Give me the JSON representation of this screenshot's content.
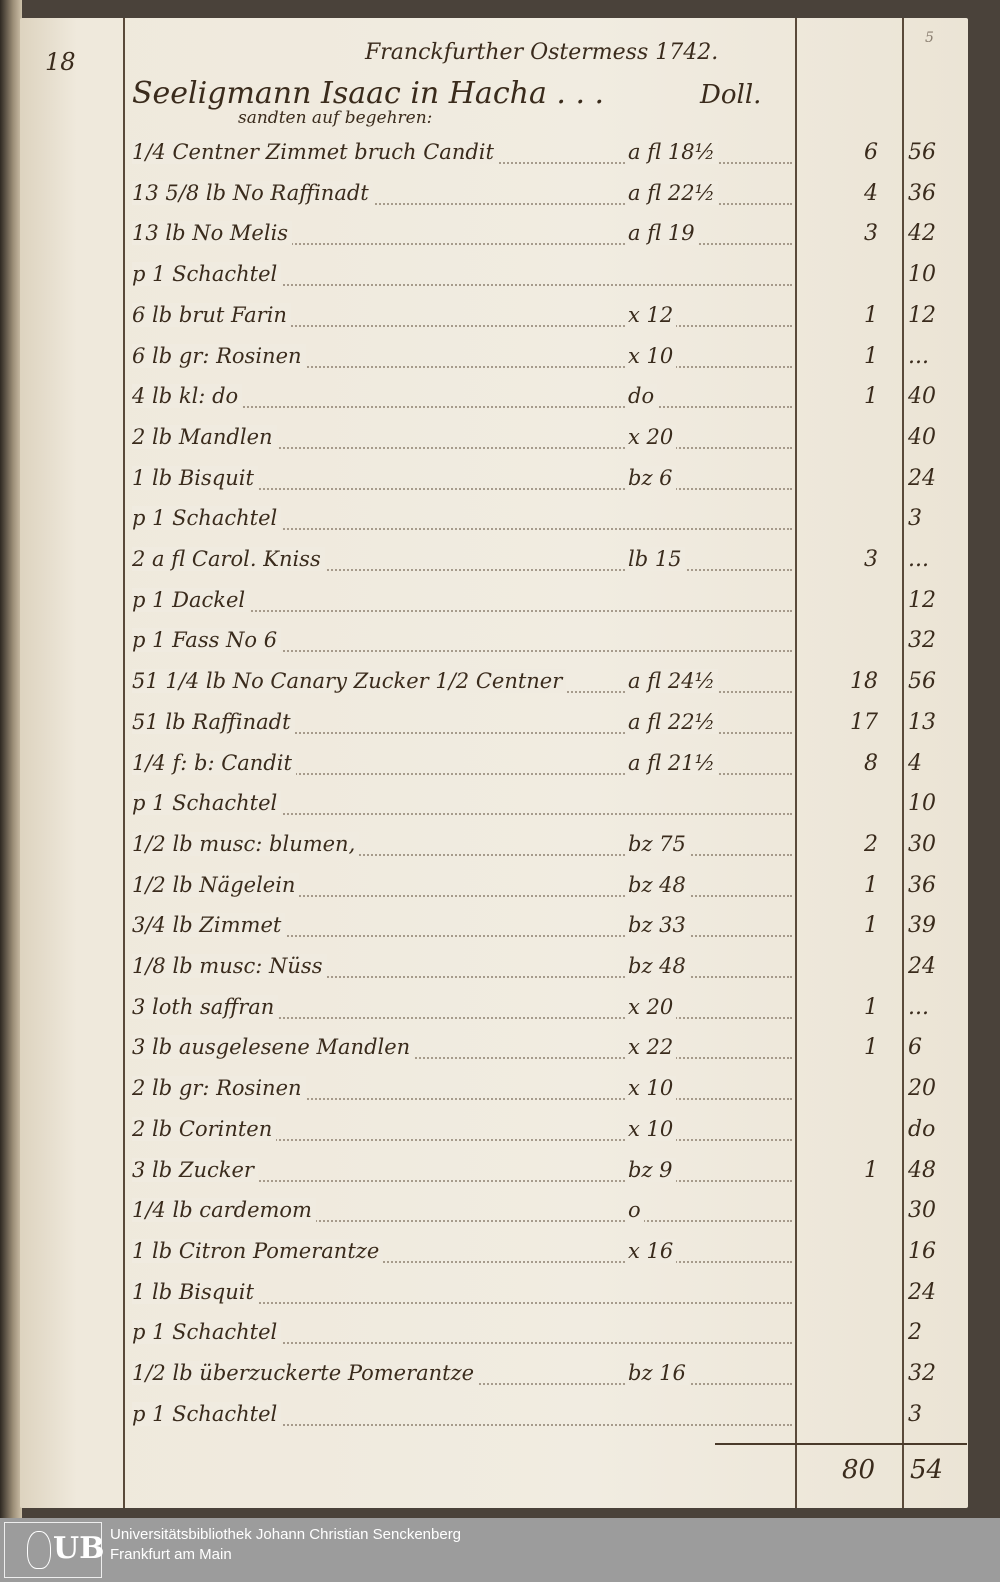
{
  "page": {
    "page_number": "18",
    "folio": "5",
    "header_line1": "Franckfurther Ostermess 1742.",
    "header_line2": "Seeligmann Isaac in Hacha . . .",
    "header_right": "Doll.",
    "header_line3": "sandten auf begehren:"
  },
  "entries": [
    {
      "item": "1/4 Centner Zimmet bruch Candit",
      "rate": "a fl 18½",
      "fl": "6",
      "kr": "56"
    },
    {
      "item": "13 5/8 lb No Raffinadt",
      "rate": "a fl 22½",
      "fl": "4",
      "kr": "36"
    },
    {
      "item": "13 lb No Melis",
      "rate": "a fl 19",
      "fl": "3",
      "kr": "42"
    },
    {
      "item": "p 1 Schachtel",
      "rate": "",
      "fl": "",
      "kr": "10"
    },
    {
      "item": "6 lb brut Farin",
      "rate": "x 12",
      "fl": "1",
      "kr": "12"
    },
    {
      "item": "6 lb gr: Rosinen",
      "rate": "x 10",
      "fl": "1",
      "kr": "..."
    },
    {
      "item": "4 lb kl: do",
      "rate": "do",
      "fl": "1",
      "kr": "40"
    },
    {
      "item": "2 lb Mandlen",
      "rate": "x 20",
      "fl": "",
      "kr": "40"
    },
    {
      "item": "1 lb Bisquit",
      "rate": "bz 6",
      "fl": "",
      "kr": "24"
    },
    {
      "item": "p 1 Schachtel",
      "rate": "",
      "fl": "",
      "kr": "3"
    },
    {
      "item": "2 a fl Carol. Kniss",
      "rate": "lb 15",
      "fl": "3",
      "kr": "..."
    },
    {
      "item": "p 1 Dackel",
      "rate": "",
      "fl": "",
      "kr": "12"
    },
    {
      "item": "p 1 Fass No 6",
      "rate": "",
      "fl": "",
      "kr": "32"
    },
    {
      "item": "51 1/4 lb No Canary Zucker 1/2 Centner",
      "rate": "a fl 24½",
      "fl": "18",
      "kr": "56"
    },
    {
      "item": "51 lb Raffinadt",
      "rate": "a fl 22½",
      "fl": "17",
      "kr": "13"
    },
    {
      "item": "1/4 f: b: Candit",
      "rate": "a fl 21½",
      "fl": "8",
      "kr": "4"
    },
    {
      "item": "p 1 Schachtel",
      "rate": "",
      "fl": "",
      "kr": "10"
    },
    {
      "item": "1/2 lb musc: blumen,",
      "rate": "bz 75",
      "fl": "2",
      "kr": "30"
    },
    {
      "item": "1/2 lb Nägelein",
      "rate": "bz 48",
      "fl": "1",
      "kr": "36"
    },
    {
      "item": "3/4 lb Zimmet",
      "rate": "bz 33",
      "fl": "1",
      "kr": "39"
    },
    {
      "item": "1/8 lb musc: Nüss",
      "rate": "bz 48",
      "fl": "",
      "kr": "24"
    },
    {
      "item": "3 loth saffran",
      "rate": "x 20",
      "fl": "1",
      "kr": "..."
    },
    {
      "item": "3 lb ausgelesene Mandlen",
      "rate": "x 22",
      "fl": "1",
      "kr": "6"
    },
    {
      "item": "2 lb gr: Rosinen",
      "rate": "x 10",
      "fl": "",
      "kr": "20"
    },
    {
      "item": "2 lb Corinten",
      "rate": "x 10",
      "fl": "",
      "kr": "do"
    },
    {
      "item": "3 lb Zucker",
      "rate": "bz 9",
      "fl": "1",
      "kr": "48"
    },
    {
      "item": "1/4 lb cardemom",
      "rate": "o",
      "fl": "",
      "kr": "30"
    },
    {
      "item": "1 lb Citron Pomerantze",
      "rate": "x 16",
      "fl": "",
      "kr": "16"
    },
    {
      "item": "1 lb Bisquit",
      "rate": "",
      "fl": "",
      "kr": "24"
    },
    {
      "item": "p 1 Schachtel",
      "rate": "",
      "fl": "",
      "kr": "2"
    },
    {
      "item": "1/2 lb überzuckerte Pomerantze",
      "rate": "bz 16",
      "fl": "",
      "kr": "32"
    },
    {
      "item": "p 1 Schachtel",
      "rate": "",
      "fl": "",
      "kr": "3"
    }
  ],
  "total": {
    "fl": "80",
    "kr": "54"
  },
  "footer": {
    "logo_text": "UB",
    "library_line1": "Universitätsbibliothek Johann Christian Senckenberg",
    "library_line2": "Frankfurt am Main"
  }
}
